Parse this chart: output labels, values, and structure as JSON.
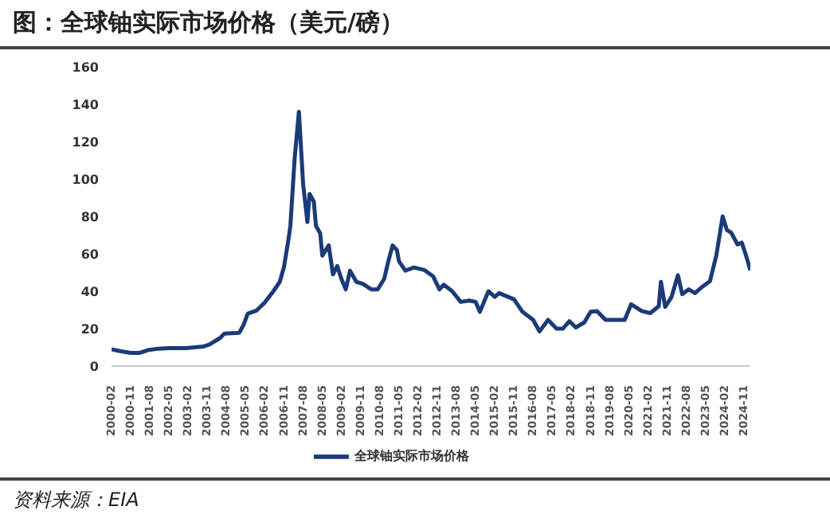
{
  "chart_data": {
    "type": "line",
    "title": "图：全球铀实际市场价格（美元/磅）",
    "annotations": [
      "资料来源：EIA"
    ],
    "x": [
      "2000-02",
      "2000-06",
      "2000-11",
      "2001-03",
      "2001-07",
      "2001-12",
      "2002-05",
      "2003-01",
      "2003-09",
      "2003-12",
      "2004-05",
      "2004-07",
      "2005-02",
      "2005-04",
      "2005-06",
      "2005-10",
      "2006-02",
      "2006-06",
      "2006-09",
      "2006-11",
      "2007-01",
      "2007-02",
      "2007-04",
      "2007-06",
      "2007-08",
      "2007-10",
      "2007-11",
      "2008-01",
      "2008-02",
      "2008-04",
      "2008-05",
      "2008-08",
      "2008-10",
      "2008-12",
      "2009-02",
      "2009-04",
      "2009-06",
      "2009-09",
      "2009-12",
      "2010-04",
      "2010-07",
      "2010-10",
      "2010-12",
      "2011-02",
      "2011-04",
      "2011-05",
      "2011-08",
      "2011-12",
      "2012-05",
      "2012-09",
      "2012-12",
      "2013-02",
      "2013-06",
      "2013-10",
      "2014-02",
      "2014-05",
      "2014-07",
      "2014-11",
      "2015-02",
      "2015-04",
      "2015-11",
      "2016-03",
      "2016-08",
      "2016-11",
      "2017-03",
      "2017-07",
      "2017-10",
      "2018-01",
      "2018-04",
      "2018-08",
      "2018-11",
      "2019-02",
      "2019-06",
      "2019-11",
      "2020-03",
      "2020-06",
      "2020-11",
      "2021-03",
      "2021-07",
      "2021-08",
      "2021-10",
      "2022-01",
      "2022-04",
      "2022-06",
      "2022-09",
      "2022-12",
      "2023-03",
      "2023-07",
      "2023-10",
      "2024-01",
      "2024-03",
      "2024-05",
      "2024-08",
      "2024-10",
      "2024-12",
      "2025-02"
    ],
    "series": [
      {
        "name": "全球铀实际市场价格",
        "color": "#1b3a78",
        "values": [
          9,
          8,
          7,
          7,
          8.5,
          9.3,
          9.6,
          9.6,
          10.4,
          11.5,
          15,
          17.3,
          17.8,
          22,
          28,
          29.6,
          34,
          40,
          45,
          53,
          67,
          75,
          111,
          136,
          97,
          77,
          92,
          88,
          75,
          71,
          59,
          64.5,
          49,
          53.5,
          46.5,
          41,
          51,
          45,
          44,
          41,
          41,
          46.5,
          56,
          64.5,
          62,
          56,
          51,
          52.7,
          51.3,
          48,
          41,
          43.5,
          40,
          34.3,
          35,
          34.3,
          29,
          40,
          37,
          39,
          35.7,
          29,
          24.7,
          18.5,
          24.7,
          20,
          20,
          24,
          20.6,
          23.3,
          29,
          29.4,
          24.7,
          24.7,
          24.7,
          33,
          29.4,
          28.3,
          32,
          45,
          31.6,
          37,
          48.6,
          38.4,
          41,
          39,
          42,
          45.3,
          59,
          80,
          72.7,
          71.3,
          65,
          66,
          59,
          51.3
        ]
      }
    ],
    "xlim": [
      "2000-02",
      "2025-02"
    ],
    "xticks": [
      "2000-02",
      "2000-11",
      "2001-08",
      "2002-05",
      "2003-02",
      "2003-11",
      "2004-08",
      "2005-05",
      "2006-02",
      "2006-11",
      "2007-08",
      "2008-05",
      "2009-02",
      "2009-11",
      "2010-08",
      "2011-05",
      "2012-02",
      "2012-11",
      "2013-08",
      "2014-05",
      "2015-02",
      "2015-11",
      "2016-08",
      "2017-05",
      "2018-02",
      "2018-11",
      "2019-08",
      "2020-05",
      "2021-02",
      "2021-11",
      "2022-08",
      "2023-05",
      "2024-02",
      "2024-11"
    ],
    "ylim": [
      0,
      160
    ],
    "yticks": [
      0,
      20,
      40,
      60,
      80,
      100,
      120,
      140,
      160
    ],
    "grid": false,
    "legend": "bottom",
    "marker": "none",
    "line_style": "solid"
  }
}
